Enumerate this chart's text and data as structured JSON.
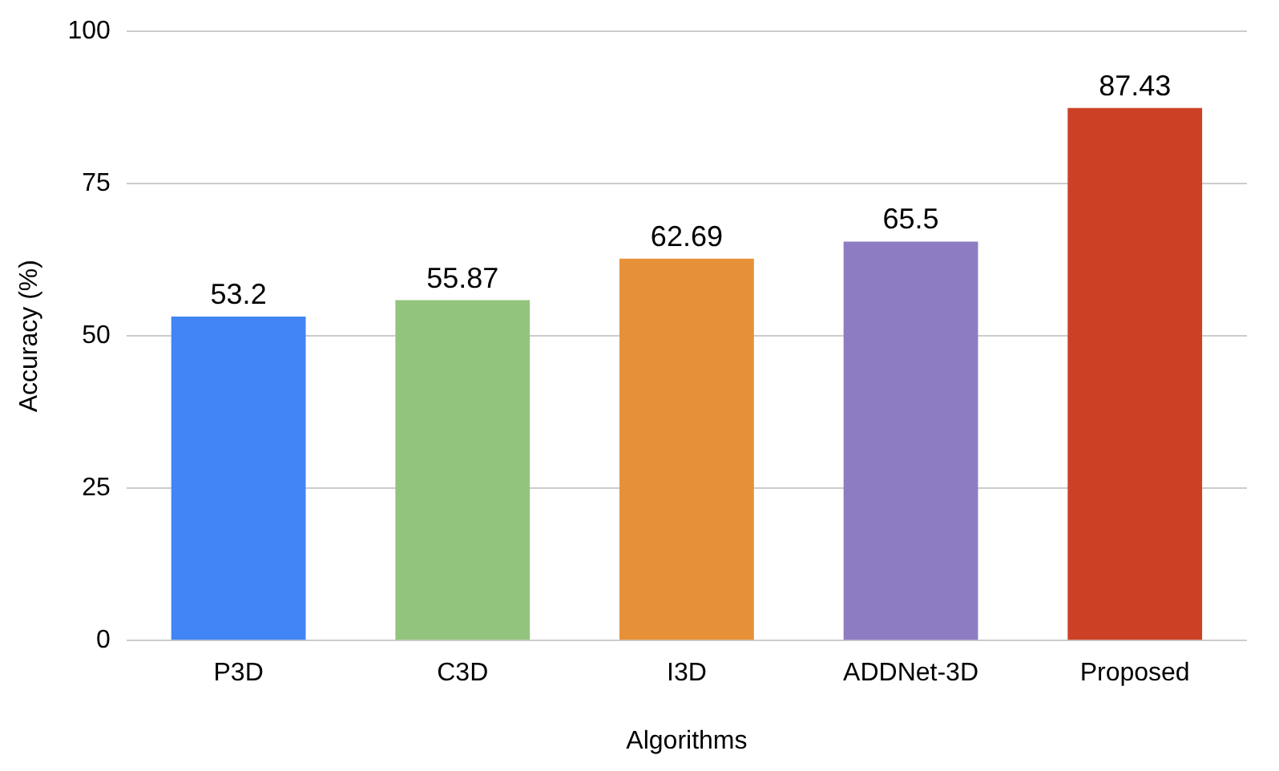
{
  "chart_data": {
    "type": "bar",
    "xlabel": "Algorithms",
    "ylabel": "Accuracy (%)",
    "categories": [
      "P3D",
      "C3D",
      "I3D",
      "ADDNet-3D",
      "Proposed"
    ],
    "values": [
      53.2,
      55.87,
      62.69,
      65.5,
      87.43
    ],
    "colors": [
      "#4285f4",
      "#93c47d",
      "#e69138",
      "#8e7cc3",
      "#cc4125"
    ],
    "ylim": [
      0,
      100
    ],
    "yticks": [
      0,
      25,
      50,
      75,
      100
    ],
    "grid": "y",
    "data_labels": true
  }
}
